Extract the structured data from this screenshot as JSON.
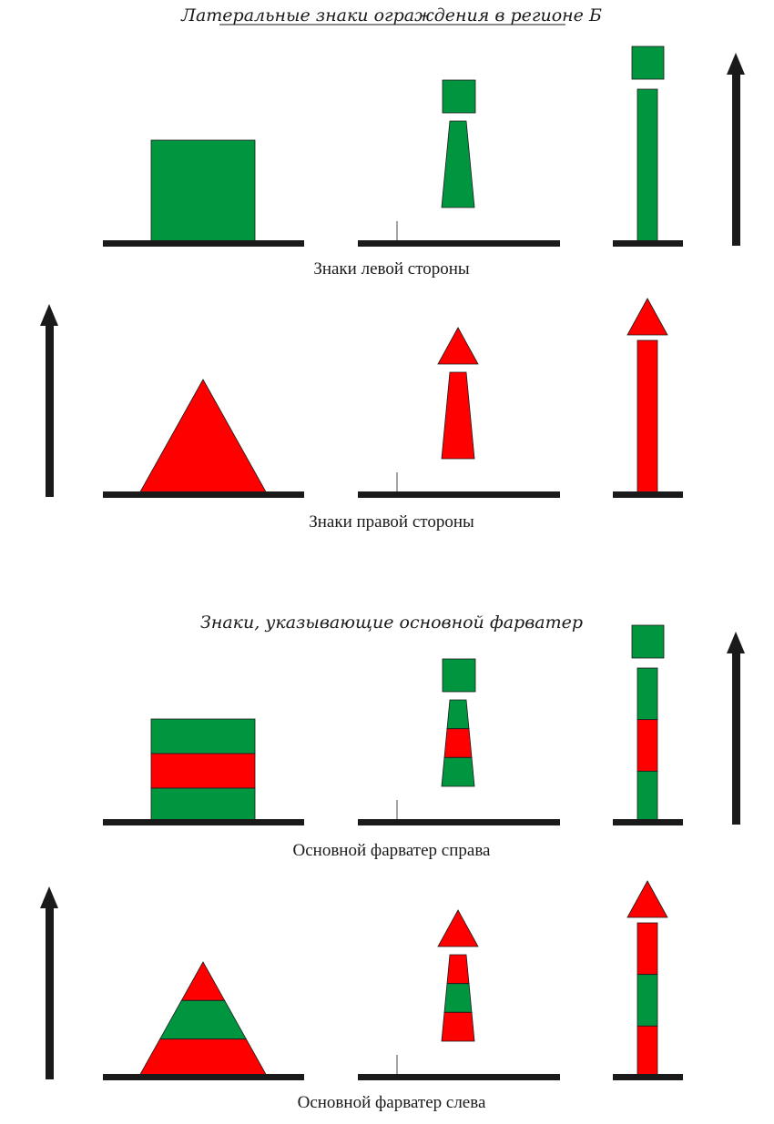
{
  "title": "Латеральные знаки ограждения в регионе Б",
  "captions": {
    "left_side": "Знаки левой стороны",
    "right_side": "Знаки правой стороны",
    "preferred_heading": "Знаки, указывающие основной фарватер",
    "preferred_right": "Основной фарватер справа",
    "preferred_left": "Основной фарватер слева"
  },
  "colors": {
    "green": "#009640",
    "red": "#ff0000",
    "base": "#1a1a1a",
    "arrow": "#1a1a1a",
    "outline": "#1a1a1a"
  },
  "rows": [
    {
      "name": "left-side-row",
      "arrow_side": "right",
      "shape": "can",
      "top_mark": "square",
      "bands": [
        "green"
      ]
    },
    {
      "name": "right-side-row",
      "arrow_side": "left",
      "shape": "cone",
      "top_mark": "triangle",
      "bands": [
        "red"
      ]
    },
    {
      "name": "preferred-right-row",
      "arrow_side": "right",
      "shape": "can",
      "top_mark": "square",
      "bands": [
        "green",
        "red",
        "green"
      ]
    },
    {
      "name": "preferred-left-row",
      "arrow_side": "left",
      "shape": "cone",
      "top_mark": "triangle",
      "bands": [
        "red",
        "green",
        "red"
      ]
    }
  ]
}
